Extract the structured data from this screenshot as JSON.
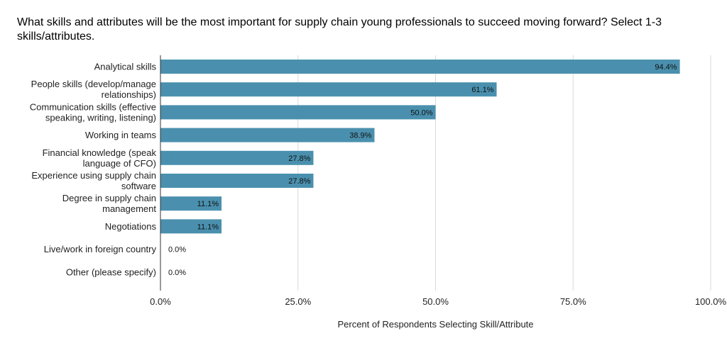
{
  "title": "What skills and attributes will be the most important for supply chain young professionals to succeed moving forward? Select 1-3 skills/attributes.",
  "colors": {
    "bar": "#4a90ae",
    "grid": "#d9d9d9",
    "axis": "#333333"
  },
  "chart_data": {
    "type": "bar",
    "orientation": "horizontal",
    "title": "What skills and attributes will be the most important for supply chain young professionals to succeed moving forward? Select 1-3 skills/attributes.",
    "xlabel": "Percent of Respondents Selecting Skill/Attribute",
    "ylabel": "",
    "xlim": [
      0,
      100
    ],
    "xticks": [
      0,
      25,
      50,
      75,
      100
    ],
    "xtick_labels": [
      "0.0%",
      "25.0%",
      "50.0%",
      "75.0%",
      "100.0%"
    ],
    "grid": true,
    "categories": [
      [
        "Analytical skills"
      ],
      [
        "People skills (develop/manage",
        "relationships)"
      ],
      [
        "Communication skills (effective",
        "speaking, writing, listening)"
      ],
      [
        "Working in teams"
      ],
      [
        "Financial knowledge (speak",
        "language of CFO)"
      ],
      [
        "Experience using supply chain",
        "software"
      ],
      [
        "Degree in supply chain",
        "management"
      ],
      [
        "Negotiations"
      ],
      [
        "Live/work in foreign country"
      ],
      [
        "Other (please specify)"
      ]
    ],
    "values": [
      94.4,
      61.1,
      50.0,
      38.9,
      27.8,
      27.8,
      11.1,
      11.1,
      0.0,
      0.0
    ],
    "data_labels": [
      "94.4%",
      "61.1%",
      "50.0%",
      "38.9%",
      "27.8%",
      "27.8%",
      "11.1%",
      "11.1%",
      "0.0%",
      "0.0%"
    ]
  }
}
